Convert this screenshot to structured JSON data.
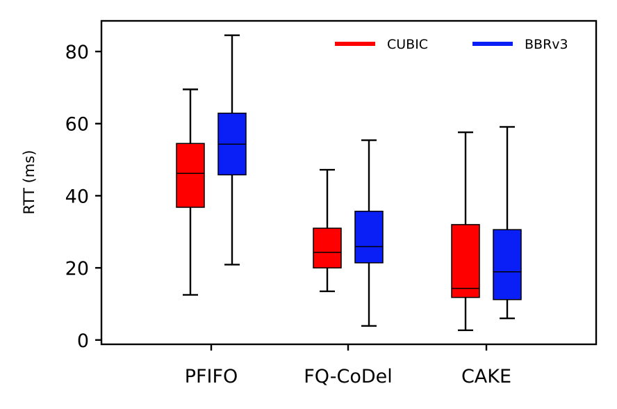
{
  "chart_data": {
    "type": "box",
    "title": "",
    "xlabel": "",
    "ylabel": "RTT (ms)",
    "ylim": [
      -1.2,
      88.5
    ],
    "yticks": [
      0,
      20,
      40,
      60,
      80
    ],
    "grid": false,
    "legend_position": "top-right",
    "categories": [
      "PFIFO",
      "FQ-CoDel",
      "CAKE"
    ],
    "series": [
      {
        "name": "CUBIC",
        "color": "#ff0000",
        "boxes": [
          {
            "category": "PFIFO",
            "whisker_low": 12.5,
            "q1": 36.8,
            "median": 46.2,
            "q3": 54.5,
            "whisker_high": 69.5
          },
          {
            "category": "FQ-CoDel",
            "whisker_low": 13.5,
            "q1": 20.0,
            "median": 24.3,
            "q3": 31.0,
            "whisker_high": 47.2
          },
          {
            "category": "CAKE",
            "whisker_low": 2.7,
            "q1": 11.8,
            "median": 14.3,
            "q3": 32.0,
            "whisker_high": 57.6
          }
        ]
      },
      {
        "name": "BBRv3",
        "color": "#0a1ff5",
        "boxes": [
          {
            "category": "PFIFO",
            "whisker_low": 20.9,
            "q1": 45.8,
            "median": 54.3,
            "q3": 62.9,
            "whisker_high": 84.5
          },
          {
            "category": "FQ-CoDel",
            "whisker_low": 3.9,
            "q1": 21.4,
            "median": 25.9,
            "q3": 35.7,
            "whisker_high": 55.4
          },
          {
            "category": "CAKE",
            "whisker_low": 6.0,
            "q1": 11.2,
            "median": 18.9,
            "q3": 30.6,
            "whisker_high": 59.1
          }
        ]
      }
    ]
  }
}
